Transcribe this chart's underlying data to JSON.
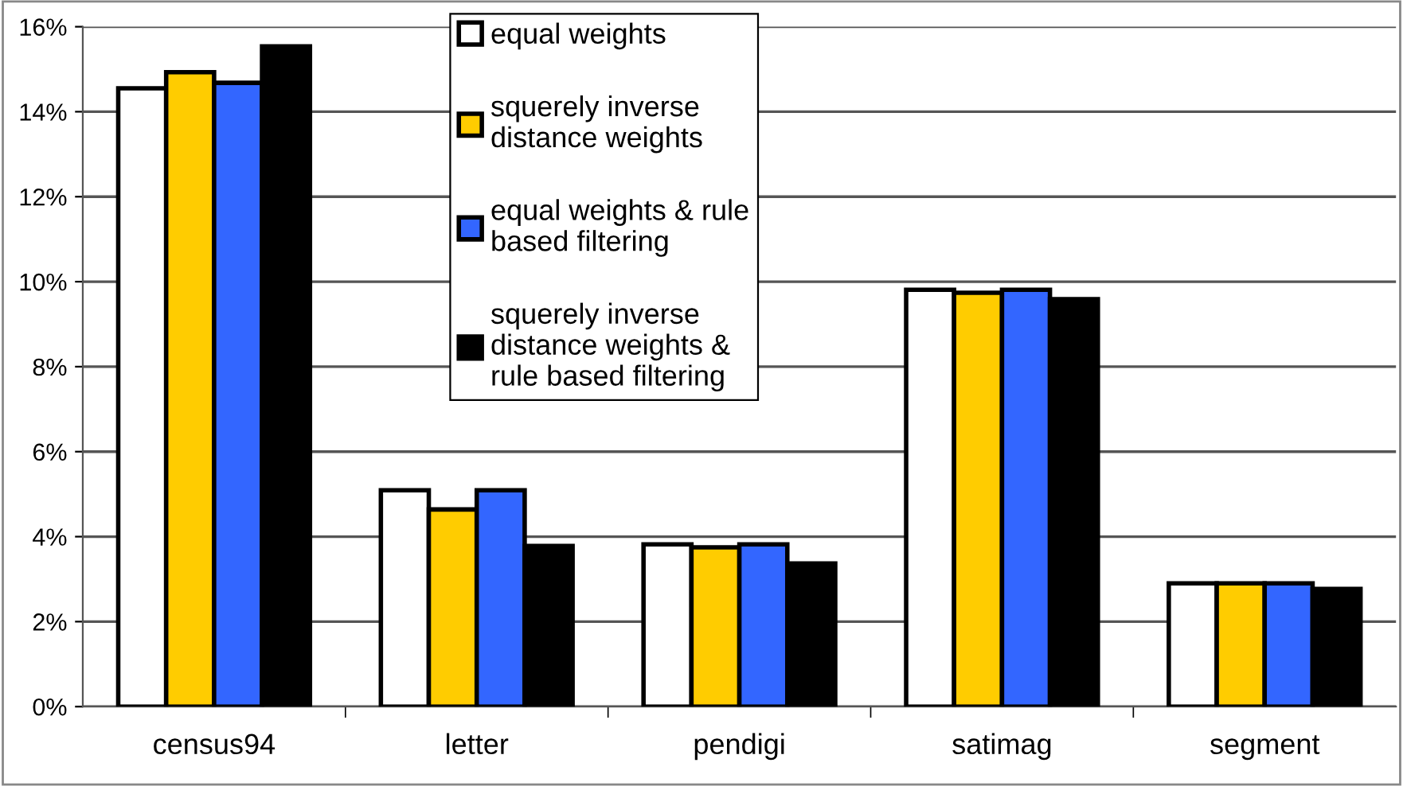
{
  "chart_data": {
    "type": "bar",
    "categories": [
      "census94",
      "letter",
      "pendigi",
      "satimag",
      "segment"
    ],
    "series": [
      {
        "name": "equal weights",
        "color": "#ffffff",
        "values": [
          14.55,
          5.09,
          3.82,
          9.81,
          2.9
        ]
      },
      {
        "name": "squerely inverse\ndistance weights",
        "color": "#ffcc00",
        "values": [
          14.93,
          4.64,
          3.75,
          9.74,
          2.9
        ]
      },
      {
        "name": "equal weights & rule\nbased filtering",
        "color": "#3366ff",
        "values": [
          14.68,
          5.09,
          3.82,
          9.81,
          2.9
        ]
      },
      {
        "name": "squerely inverse\ndistance weights &\nrule based filtering",
        "color": "#000000",
        "values": [
          15.54,
          3.78,
          3.37,
          9.59,
          2.77
        ]
      }
    ],
    "ylim": [
      0,
      16
    ],
    "yticks": [
      {
        "value": 0,
        "label": "0%"
      },
      {
        "value": 2,
        "label": "2%"
      },
      {
        "value": 4,
        "label": "4%"
      },
      {
        "value": 6,
        "label": "6%"
      },
      {
        "value": 8,
        "label": "8%"
      },
      {
        "value": 10,
        "label": "10%"
      },
      {
        "value": 12,
        "label": "12%"
      },
      {
        "value": 14,
        "label": "14%"
      },
      {
        "value": 16,
        "label": "16%"
      }
    ],
    "grid": "y",
    "legend": "top"
  }
}
